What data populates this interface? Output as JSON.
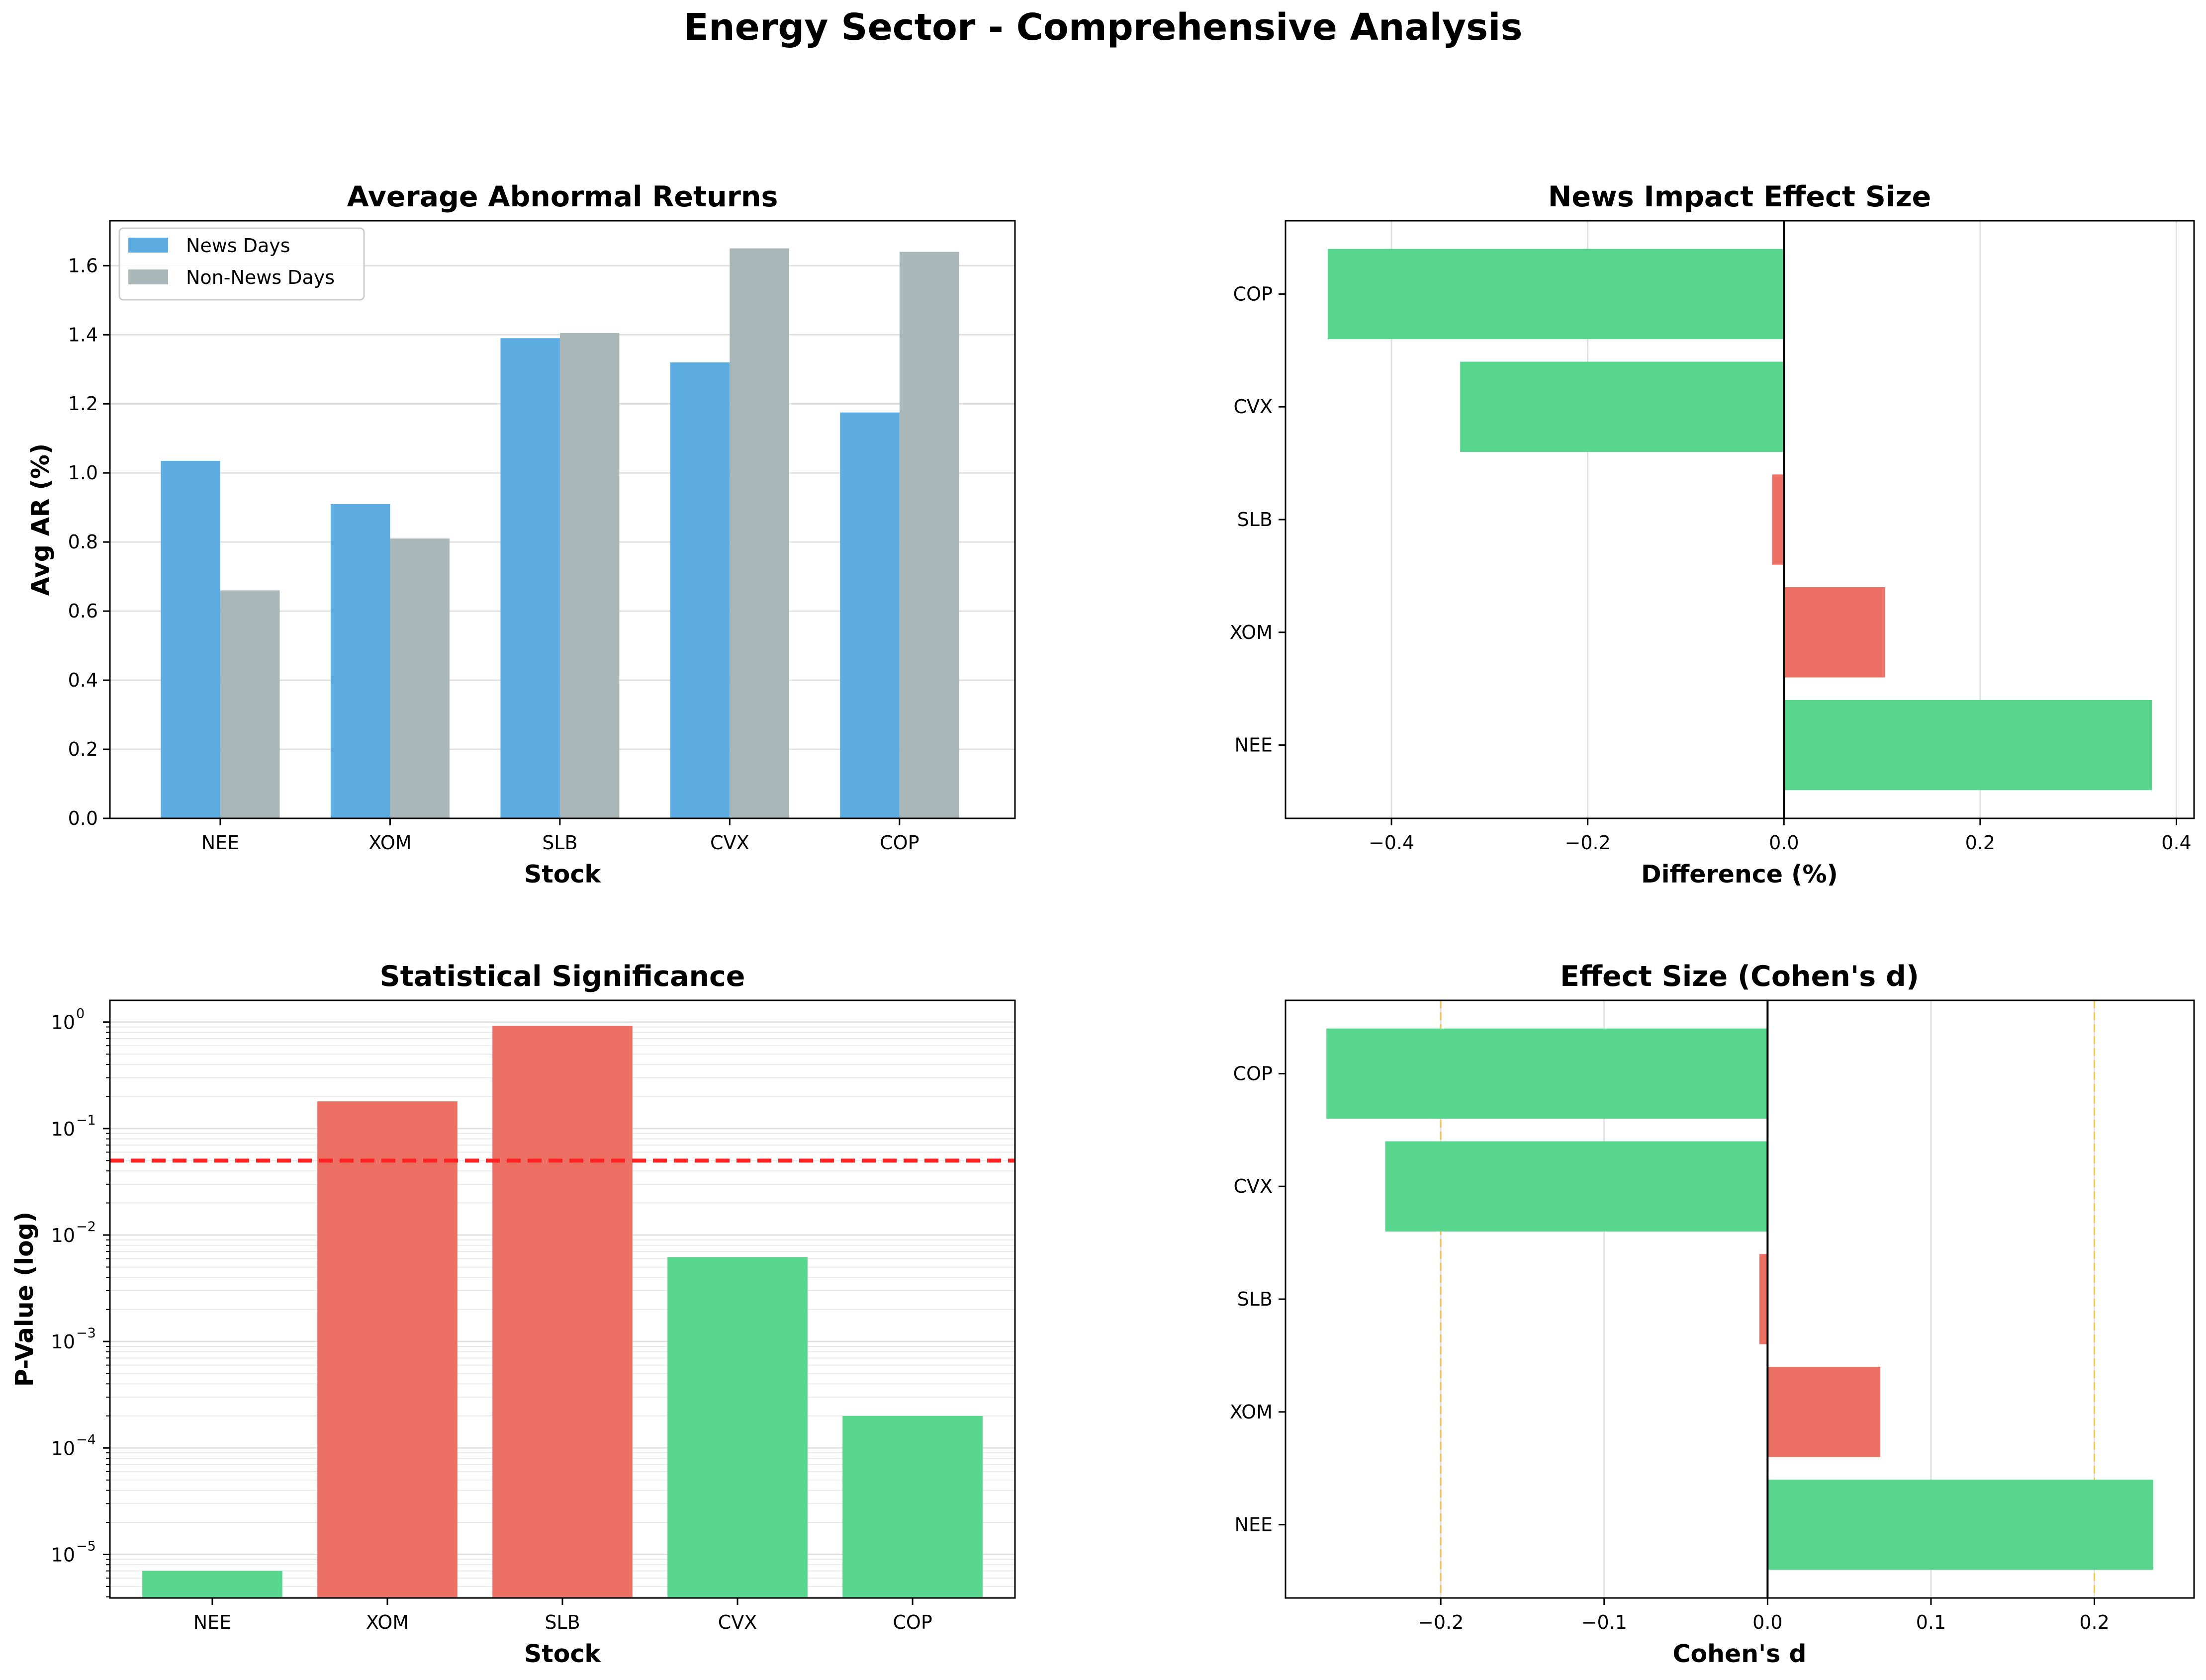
{
  "figure": {
    "title": "Energy Sector - Comprehensive Analysis"
  },
  "colors": {
    "news": "#5dade2",
    "non_news": "#aab7b8",
    "green": "#58d68d",
    "red": "#ec7063",
    "threshold": "#ff2222",
    "cohen_guide": "#f5c451",
    "grid": "#e0e0e0"
  },
  "chart_data": [
    {
      "type": "bar",
      "title": "Average Abnormal Returns",
      "xlabel": "Stock",
      "ylabel": "Avg AR (%)",
      "categories": [
        "NEE",
        "XOM",
        "SLB",
        "CVX",
        "COP"
      ],
      "series": [
        {
          "name": "News Days",
          "values": [
            1.035,
            0.91,
            1.39,
            1.32,
            1.175
          ]
        },
        {
          "name": "Non-News Days",
          "values": [
            0.66,
            0.81,
            1.405,
            1.65,
            1.64
          ]
        }
      ],
      "ylim": [
        0,
        1.73
      ],
      "yticks": [
        "0.0",
        "0.2",
        "0.4",
        "0.6",
        "0.8",
        "1.0",
        "1.2",
        "1.4",
        "1.6"
      ],
      "legend": "upper-left",
      "grid": "y"
    },
    {
      "type": "bar",
      "orientation": "horizontal",
      "title": "News Impact Effect Size",
      "xlabel": "Difference (%)",
      "ylabel": "",
      "categories": [
        "NEE",
        "XOM",
        "SLB",
        "CVX",
        "COP"
      ],
      "values": [
        0.375,
        0.103,
        -0.012,
        -0.33,
        -0.465
      ],
      "xlim": [
        -0.508,
        0.418
      ],
      "xticks": [
        "−0.4",
        "−0.2",
        "0.0",
        "0.2",
        "0.4"
      ],
      "grid": "x"
    },
    {
      "type": "bar",
      "title": "Statistical Significance",
      "xlabel": "Stock",
      "ylabel": "P-Value (log)",
      "categories": [
        "NEE",
        "XOM",
        "SLB",
        "CVX",
        "COP"
      ],
      "values": [
        7e-06,
        0.18,
        0.92,
        0.0062,
        0.0002
      ],
      "yscale": "log",
      "ylim": [
        3.9e-06,
        1.6
      ],
      "yticks": [
        "10",
        "10",
        "10",
        "10",
        "10",
        "10"
      ],
      "ytick_exponents": [
        "−5",
        "−4",
        "−3",
        "−2",
        "−1",
        "0"
      ],
      "threshold": 0.05,
      "grid": "y"
    },
    {
      "type": "bar",
      "orientation": "horizontal",
      "title": "Effect Size (Cohen's d)",
      "xlabel": "Cohen's d",
      "ylabel": "",
      "categories": [
        "NEE",
        "XOM",
        "SLB",
        "CVX",
        "COP"
      ],
      "values": [
        0.236,
        0.069,
        -0.005,
        -0.234,
        -0.27
      ],
      "xlim": [
        -0.295,
        0.261
      ],
      "xticks": [
        "−0.2",
        "−0.1",
        "0.0",
        "0.1",
        "0.2"
      ],
      "reference_lines": [
        -0.2,
        0.2
      ],
      "grid": "x"
    }
  ]
}
